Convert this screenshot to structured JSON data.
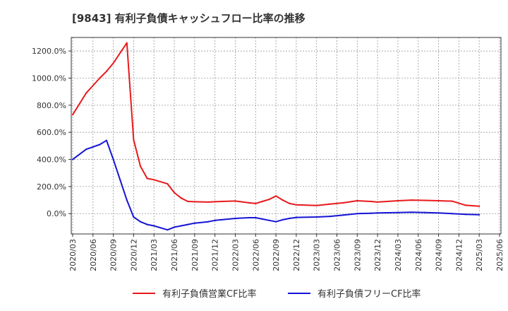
{
  "title": "[9843]  有利子負債キャッシュフロー比率の推移",
  "chart_data": {
    "type": "line",
    "title": "[9843]  有利子負債キャッシュフロー比率の推移",
    "xlabel": "",
    "ylabel": "",
    "ylim": [
      -150,
      1300
    ],
    "yticks": [
      0,
      200,
      400,
      600,
      800,
      1000,
      1200
    ],
    "ytick_labels": [
      "0.0%",
      "200.0%",
      "400.0%",
      "600.0%",
      "800.0%",
      "1000.0%",
      "1200.0%"
    ],
    "xtick_labels": [
      "2020/03",
      "2020/06",
      "2020/09",
      "2020/12",
      "2021/03",
      "2021/06",
      "2021/09",
      "2021/12",
      "2022/03",
      "2022/06",
      "2022/09",
      "2022/12",
      "2023/03",
      "2023/06",
      "2023/09",
      "2023/12",
      "2024/03",
      "2024/06",
      "2024/09",
      "2024/12",
      "2025/03",
      "2025/06"
    ],
    "x": [
      "2020/03",
      "2020/05",
      "2020/07",
      "2020/08",
      "2020/09",
      "2020/10",
      "2020/11",
      "2020/12",
      "2021/01",
      "2021/02",
      "2021/03",
      "2021/05",
      "2021/06",
      "2021/07",
      "2021/08",
      "2021/09",
      "2021/11",
      "2021/12",
      "2022/01",
      "2022/03",
      "2022/05",
      "2022/06",
      "2022/07",
      "2022/08",
      "2022/09",
      "2022/10",
      "2022/11",
      "2022/12",
      "2023/03",
      "2023/05",
      "2023/07",
      "2023/09",
      "2023/11",
      "2023/12",
      "2024/03",
      "2024/05",
      "2024/07",
      "2024/09",
      "2024/11",
      "2025/01",
      "2025/03"
    ],
    "series": [
      {
        "name": "有利子負債営業CF比率",
        "color": "#e8191b",
        "values": [
          730,
          890,
          1000,
          1050,
          1110,
          1185,
          1260,
          545,
          350,
          260,
          250,
          220,
          155,
          115,
          90,
          88,
          85,
          88,
          90,
          93,
          80,
          75,
          90,
          105,
          130,
          100,
          75,
          65,
          60,
          70,
          80,
          95,
          90,
          85,
          95,
          100,
          98,
          95,
          92,
          62,
          55
        ]
      },
      {
        "name": "有利子負債フリーCF比率",
        "color": "#1515d6",
        "values": [
          400,
          475,
          510,
          540,
          400,
          250,
          100,
          -25,
          -60,
          -80,
          -90,
          -120,
          -100,
          -90,
          -80,
          -70,
          -60,
          -50,
          -45,
          -35,
          -30,
          -30,
          -40,
          -50,
          -60,
          -45,
          -35,
          -28,
          -25,
          -20,
          -10,
          0,
          3,
          5,
          8,
          10,
          8,
          5,
          0,
          -5,
          -8
        ]
      }
    ],
    "legend_position": "bottom",
    "grid": true
  }
}
